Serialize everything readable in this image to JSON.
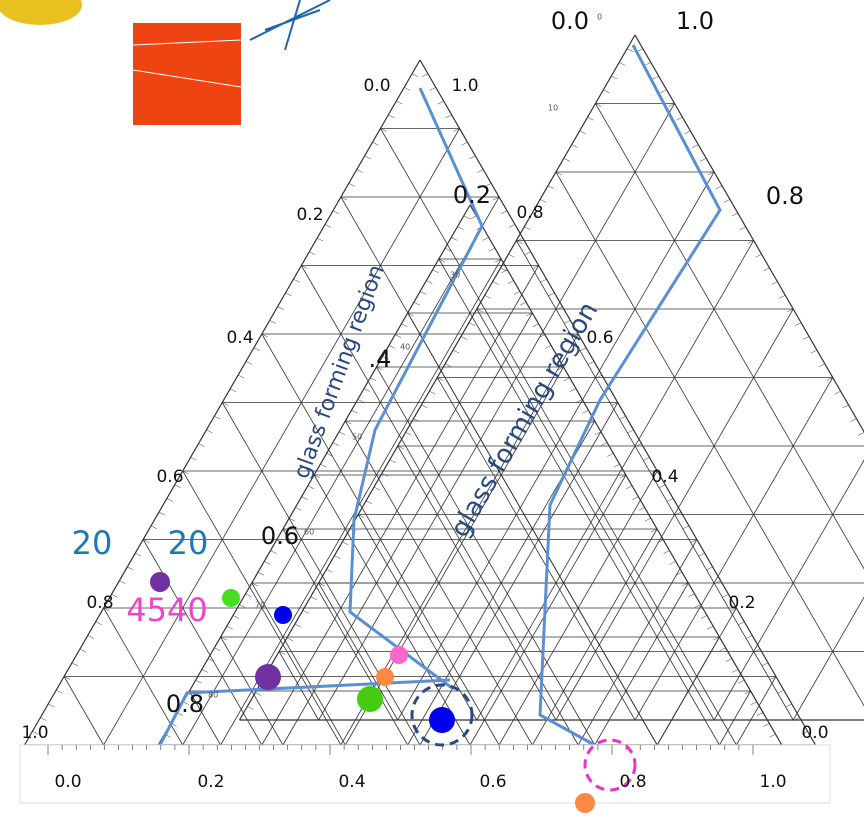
{
  "right_triangle": {
    "ticks": [
      "0.0",
      "1.0",
      "0.8",
      "0.6",
      "0.4",
      "0.2",
      "0.0"
    ],
    "minor_ticks": [
      "0",
      "10",
      "30",
      "40",
      "50",
      "60",
      "70",
      "80"
    ]
  },
  "middle_triangle": {
    "ticks": [
      "0.0",
      "1.0",
      "0.2",
      "0.4",
      "0.6",
      "0.8",
      "1.0"
    ],
    "overlay_labels": [
      "0.2",
      "0.8",
      ".4",
      "0.6",
      "0.8"
    ]
  },
  "region_labels": [
    "glass forming region",
    "glass forming region"
  ],
  "annotations": [
    "20",
    "20",
    "4540"
  ],
  "x_axis": {
    "ticks": [
      "0.0",
      "0.2",
      "0.4",
      "0.6",
      "0.8",
      "1.0"
    ]
  }
}
